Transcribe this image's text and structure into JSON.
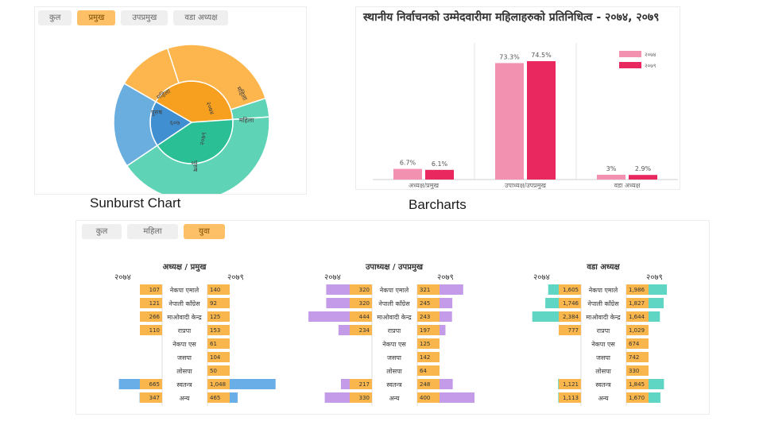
{
  "sunburst": {
    "tabs": [
      {
        "label": "कुल",
        "active": false
      },
      {
        "label": "प्रमुख",
        "active": true
      },
      {
        "label": "उपप्रमुख",
        "active": false
      },
      {
        "label": "वडा अध्यक्ष",
        "active": false
      }
    ],
    "caption": "Sunburst Chart",
    "labels": {
      "inner_left": "६०७",
      "inner_top": "२०७४",
      "inner_bottom": "२०७९",
      "outer_top": "महिला",
      "outer_topleft": "महिला",
      "outer_left": "पुरुष",
      "outer_right": "महिला",
      "outer_bottom": "पुरुष"
    },
    "colors": {
      "orange": "#fdb64e",
      "orange_dark": "#f7a01f",
      "teal": "#5fd3b6",
      "teal_dark": "#2bbf96",
      "blue": "#6aaee0",
      "blue_dark": "#3f8fd1"
    }
  },
  "barchart": {
    "caption": "Barcharts",
    "chart_data": {
      "type": "bar",
      "title": "स्थानीय निर्वाचनको उम्मेदवारीमा महिलाहरुको प्रतिनिधित्व - २०७४, २०७९",
      "categories": [
        "अध्यक्ष/प्रमुख",
        "उपाध्यक्ष/उपप्रमुख",
        "वडा अध्यक्ष"
      ],
      "series": [
        {
          "name": "२०७४",
          "color": "#f291b0",
          "values": [
            6.7,
            73.3,
            3.0
          ],
          "labels": [
            "6.7%",
            "73.3%",
            "3%"
          ]
        },
        {
          "name": "२०७९",
          "color": "#e8285f",
          "values": [
            6.1,
            74.5,
            2.9
          ],
          "labels": [
            "6.1%",
            "74.5%",
            "2.9%"
          ]
        }
      ],
      "ylim": [
        0,
        80
      ],
      "legend": "top-right"
    }
  },
  "butterfly": {
    "tabs": [
      {
        "label": "कुल",
        "active": false
      },
      {
        "label": "महिला",
        "active": false
      },
      {
        "label": "युवा",
        "active": true
      }
    ],
    "parties": [
      "नेकपा एमाले",
      "नेपाली काँग्रेस",
      "माओवादी केन्द्र",
      "राप्रपा",
      "नेकपा एस",
      "जसपा",
      "लोसपा",
      "स्वतन्त्र",
      "अन्य"
    ],
    "left_year": "२०७४",
    "right_year": "२०७९",
    "panels": [
      {
        "title": "अध्यक्ष / प्रमुख",
        "color": "#6aaee8",
        "max": 1100,
        "left_values": [
          107,
          121,
          266,
          110,
          null,
          null,
          null,
          665,
          347
        ],
        "right_values": [
          140,
          92,
          125,
          153,
          61,
          104,
          50,
          1048,
          465
        ],
        "left_labels": [
          "107",
          "121",
          "266",
          "110",
          "",
          "",
          "",
          "665",
          "347"
        ],
        "right_labels": [
          "140",
          "92",
          "125",
          "153",
          "61",
          "104",
          "50",
          "1,048",
          "465"
        ]
      },
      {
        "title": "उपाध्यक्ष / उपप्रमुख",
        "color": "#c39be8",
        "max": 500,
        "left_values": [
          320,
          320,
          444,
          234,
          null,
          null,
          null,
          217,
          330
        ],
        "right_values": [
          321,
          245,
          243,
          197,
          125,
          142,
          64,
          248,
          400
        ],
        "left_labels": [
          "320",
          "320",
          "444",
          "234",
          "",
          "",
          "",
          "217",
          "330"
        ],
        "right_labels": [
          "321",
          "245",
          "243",
          "197",
          "125",
          "142",
          "64",
          "248",
          "400"
        ]
      },
      {
        "title": "वडा अध्यक्ष",
        "color": "#5fd6c4",
        "max": 3500,
        "left_values": [
          1605,
          1746,
          2384,
          777,
          null,
          null,
          null,
          1121,
          1113
        ],
        "right_values": [
          1986,
          1827,
          1644,
          1029,
          674,
          742,
          330,
          1845,
          1670
        ],
        "left_labels": [
          "1,605",
          "1,746",
          "2,384",
          "777",
          "",
          "",
          "",
          "1,121",
          "1,113"
        ],
        "right_labels": [
          "1,986",
          "1,827",
          "1,644",
          "1,029",
          "674",
          "742",
          "330",
          "1,845",
          "1,670"
        ]
      }
    ],
    "colors": {
      "label_box": "#f8b64c"
    }
  }
}
